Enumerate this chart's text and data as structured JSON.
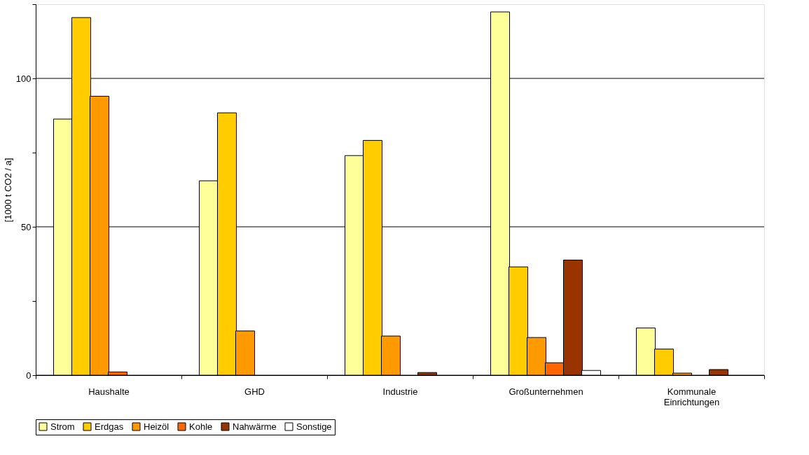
{
  "chart_data": {
    "type": "bar",
    "ylabel": "[1000 t CO2 / a]",
    "categories": [
      "Haushalte",
      "GHD",
      "Industrie",
      "Großunternehmen",
      "Kommunale Einrichtungen"
    ],
    "series": [
      {
        "name": "Strom",
        "color": "#ffff99",
        "values": [
          86.3,
          65.5,
          74.0,
          122.4,
          15.9
        ]
      },
      {
        "name": "Erdgas",
        "color": "#ffcc00",
        "values": [
          120.5,
          88.4,
          79.1,
          36.5,
          8.8
        ]
      },
      {
        "name": "Heizöl",
        "color": "#ff9900",
        "values": [
          94.0,
          14.9,
          13.2,
          12.7,
          0.7
        ]
      },
      {
        "name": "Kohle",
        "color": "#ff6600",
        "values": [
          1.1,
          null,
          null,
          4.2,
          null
        ]
      },
      {
        "name": "Nahwärme",
        "color": "#993300",
        "values": [
          null,
          null,
          0.9,
          38.8,
          1.9
        ]
      },
      {
        "name": "Sonstige",
        "color": "#ffffff",
        "values": [
          null,
          null,
          null,
          1.6,
          null
        ]
      }
    ],
    "ylim": [
      0,
      125
    ],
    "yticks": [
      0,
      {
        "value": 25,
        "label": null
      },
      50,
      {
        "value": 75,
        "label": null
      },
      100,
      {
        "value": 125,
        "label": null
      }
    ],
    "grid": "y",
    "legend": "bottom"
  }
}
